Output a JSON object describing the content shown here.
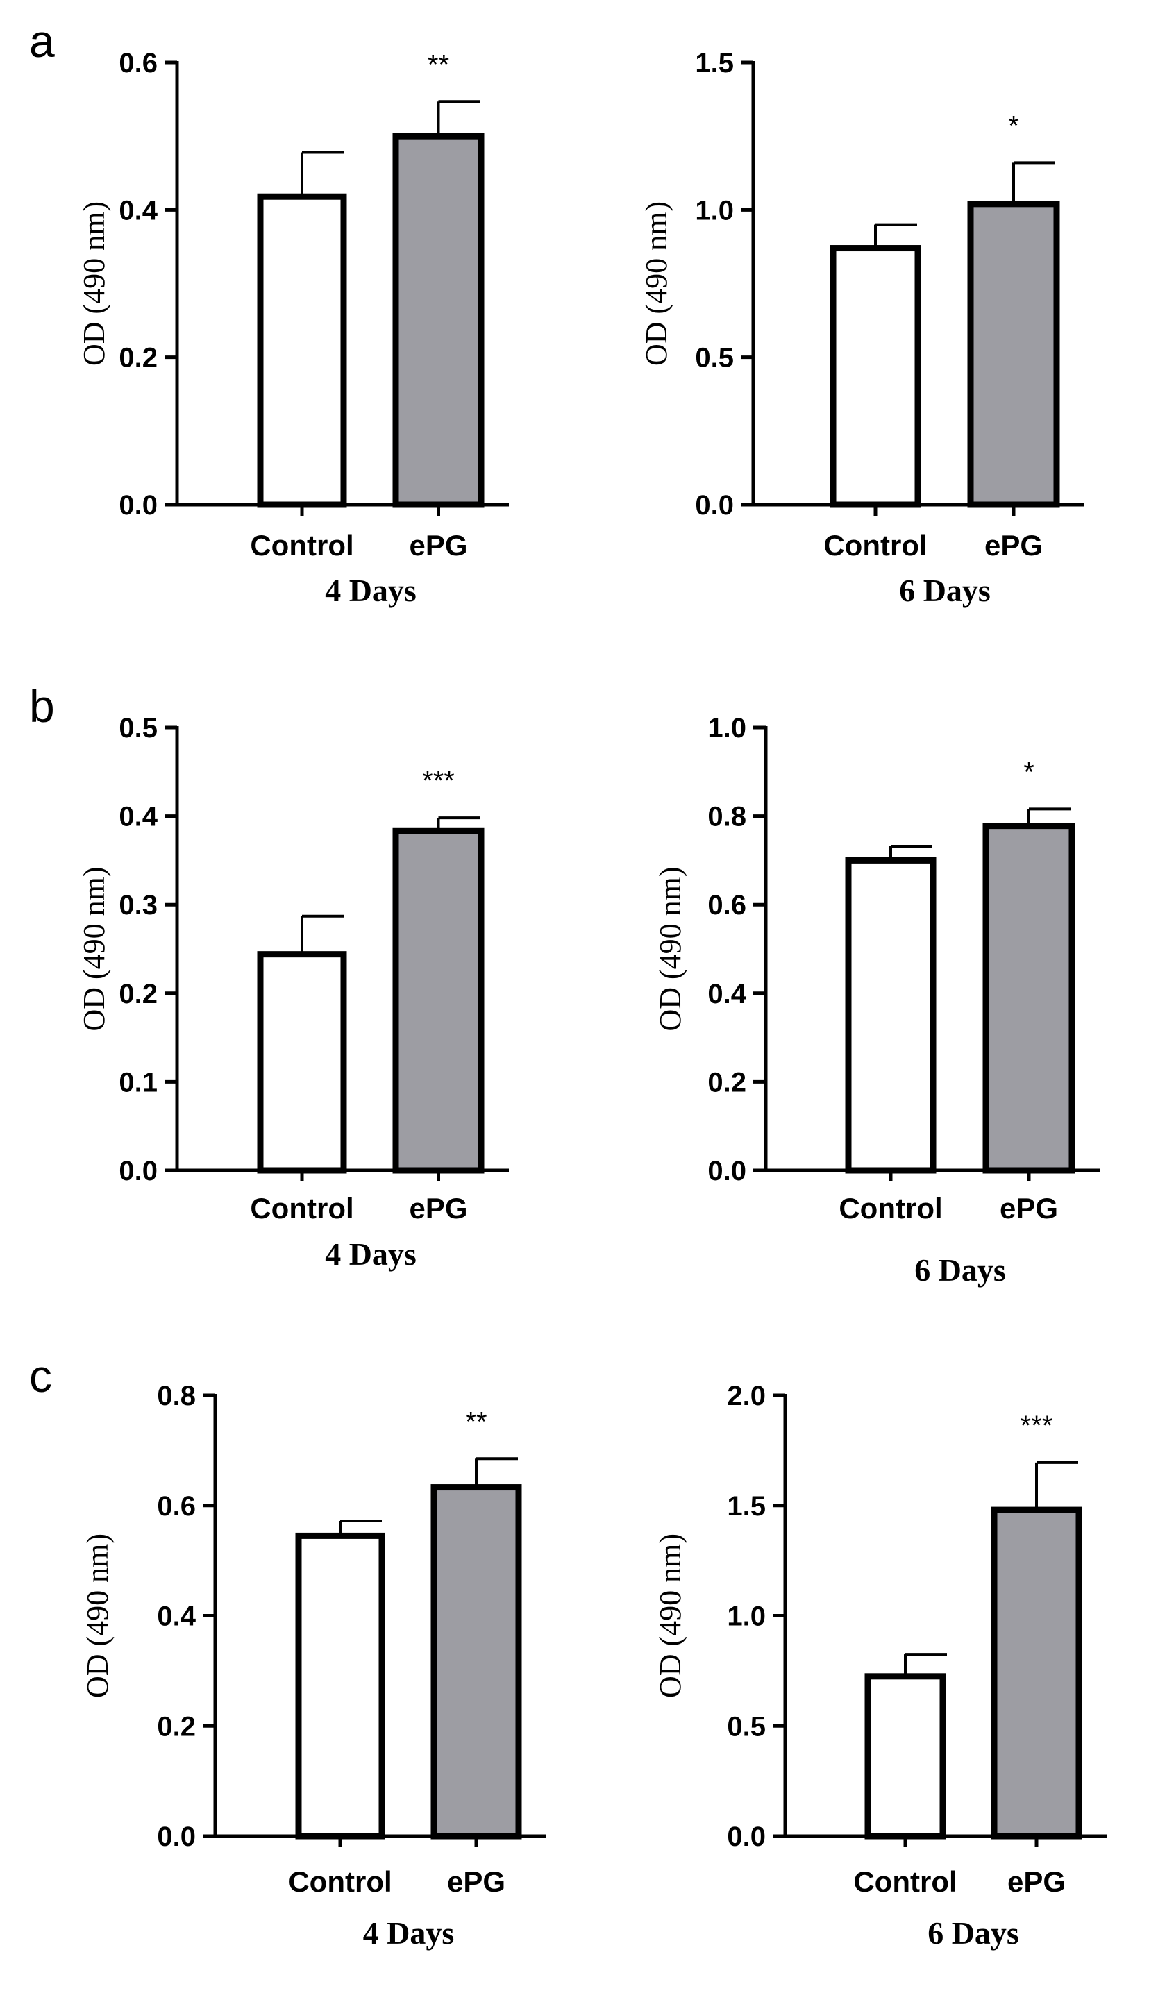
{
  "chart_data": [
    {
      "type": "bar",
      "panel_label": "a",
      "title": "",
      "categories": [
        "Control",
        "ePG"
      ],
      "values": [
        0.418,
        0.5
      ],
      "errors": [
        0.06,
        0.047
      ],
      "significance": "**",
      "xlabel": "4 Days",
      "ylabel": "OD (490 nm)",
      "ylim": [
        0,
        0.6
      ],
      "yticks": [
        "0.0",
        "0.2",
        "0.4",
        "0.6"
      ],
      "colors": [
        "#ffffff",
        "#9d9da3"
      ],
      "grid": false
    },
    {
      "type": "bar",
      "panel_label": "",
      "title": "",
      "categories": [
        "Control",
        "ePG"
      ],
      "values": [
        0.87,
        1.02
      ],
      "errors": [
        0.08,
        0.14
      ],
      "significance": "*",
      "xlabel": "6 Days",
      "ylabel": "OD (490 nm)",
      "ylim": [
        0,
        1.5
      ],
      "yticks": [
        "0.0",
        "0.5",
        "1.0",
        "1.5"
      ],
      "colors": [
        "#ffffff",
        "#9d9da3"
      ],
      "grid": false
    },
    {
      "type": "bar",
      "panel_label": "b",
      "title": "",
      "categories": [
        "Control",
        "ePG"
      ],
      "values": [
        0.244,
        0.383
      ],
      "errors": [
        0.043,
        0.015
      ],
      "significance": "***",
      "xlabel": "4 Days",
      "ylabel": "OD (490 nm)",
      "ylim": [
        0,
        0.5
      ],
      "yticks": [
        "0.0",
        "0.1",
        "0.2",
        "0.3",
        "0.4",
        "0.5"
      ],
      "colors": [
        "#ffffff",
        "#9d9da3"
      ],
      "grid": false
    },
    {
      "type": "bar",
      "panel_label": "",
      "title": "",
      "categories": [
        "Control",
        "ePG"
      ],
      "values": [
        0.7,
        0.778
      ],
      "errors": [
        0.032,
        0.038
      ],
      "significance": "*",
      "xlabel": "6 Days",
      "ylabel": "OD (490 nm)",
      "ylim": [
        0,
        1.0
      ],
      "yticks": [
        "0.0",
        "0.2",
        "0.4",
        "0.6",
        "0.8",
        "1.0"
      ],
      "colors": [
        "#ffffff",
        "#9d9da3"
      ],
      "grid": false
    },
    {
      "type": "bar",
      "panel_label": "c",
      "title": "",
      "categories": [
        "Control",
        "ePG"
      ],
      "values": [
        0.545,
        0.633
      ],
      "errors": [
        0.027,
        0.052
      ],
      "significance": "**",
      "xlabel": "4 Days",
      "ylabel": "OD (490 nm)",
      "ylim": [
        0,
        0.8
      ],
      "yticks": [
        "0.0",
        "0.2",
        "0.4",
        "0.6",
        "0.8"
      ],
      "colors": [
        "#ffffff",
        "#9d9da3"
      ],
      "grid": false
    },
    {
      "type": "bar",
      "panel_label": "",
      "title": "",
      "categories": [
        "Control",
        "ePG"
      ],
      "values": [
        0.725,
        1.48
      ],
      "errors": [
        0.1,
        0.215
      ],
      "significance": "***",
      "xlabel": "6 Days",
      "ylabel": "OD (490 nm)",
      "ylim": [
        0,
        2.0
      ],
      "yticks": [
        "0.0",
        "0.5",
        "1.0",
        "1.5",
        "2.0"
      ],
      "colors": [
        "#ffffff",
        "#9d9da3"
      ],
      "grid": false
    }
  ]
}
